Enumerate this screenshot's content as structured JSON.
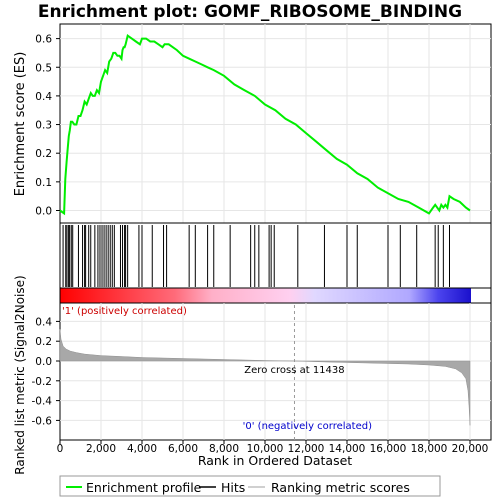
{
  "chart_data": {
    "type": "line",
    "title": "Enrichment plot: GOMF_RIBOSOME_BINDING",
    "panels": {
      "es": {
        "ylabel": "Enrichment score (ES)",
        "ylim": [
          -0.03,
          0.65
        ],
        "yticks": [
          "0.0",
          "0.1",
          "0.2",
          "0.3",
          "0.4",
          "0.5",
          "0.6"
        ],
        "grid": true
      },
      "metric": {
        "ylabel": "Ranked list metric (Signal2Noise)",
        "ylim": [
          -0.7,
          0.48
        ],
        "yticks": [
          "-0.6",
          "-0.4",
          "-0.2",
          "0.0",
          "0.2",
          "0.4"
        ],
        "grid": true
      }
    },
    "x": {
      "label": "Rank in Ordered Dataset",
      "xlim": [
        0,
        21000
      ],
      "ticks": [
        "0",
        "2,000",
        "4,000",
        "6,000",
        "8,000",
        "10,000",
        "12,000",
        "14,000",
        "16,000",
        "18,000",
        "20,000"
      ]
    },
    "series": [
      {
        "name": "Enrichment profile",
        "color": "#00ee00",
        "x": [
          0,
          200,
          260,
          320,
          380,
          430,
          480,
          530,
          600,
          700,
          800,
          900,
          1000,
          1100,
          1200,
          1300,
          1400,
          1500,
          1600,
          1700,
          1800,
          1900,
          2000,
          2100,
          2200,
          2300,
          2400,
          2500,
          2600,
          2700,
          2800,
          2900,
          3000,
          3050,
          3100,
          3150,
          3200,
          3300,
          3500,
          3700,
          3900,
          4000,
          4200,
          4400,
          4600,
          4800,
          5000,
          5100,
          5200,
          5300,
          5500,
          5700,
          6000,
          6300,
          6600,
          6900,
          7200,
          7500,
          8000,
          8500,
          9000,
          9500,
          10000,
          10500,
          11000,
          11500,
          12000,
          12500,
          13000,
          13500,
          14000,
          14500,
          15000,
          15500,
          16000,
          16500,
          17000,
          17500,
          18000,
          18200,
          18300,
          18400,
          18500,
          18600,
          18700,
          18800,
          18900,
          19000,
          19200,
          19500,
          19800,
          20000
        ],
        "values": [
          0.0,
          -0.01,
          0.11,
          0.17,
          0.22,
          0.26,
          0.28,
          0.31,
          0.31,
          0.3,
          0.3,
          0.33,
          0.33,
          0.35,
          0.38,
          0.37,
          0.39,
          0.41,
          0.4,
          0.4,
          0.42,
          0.41,
          0.45,
          0.47,
          0.49,
          0.48,
          0.52,
          0.53,
          0.55,
          0.55,
          0.54,
          0.54,
          0.53,
          0.56,
          0.57,
          0.57,
          0.58,
          0.61,
          0.6,
          0.59,
          0.58,
          0.6,
          0.6,
          0.59,
          0.59,
          0.58,
          0.57,
          0.58,
          0.58,
          0.58,
          0.57,
          0.56,
          0.54,
          0.53,
          0.52,
          0.51,
          0.5,
          0.49,
          0.47,
          0.44,
          0.42,
          0.4,
          0.37,
          0.35,
          0.32,
          0.3,
          0.27,
          0.24,
          0.21,
          0.18,
          0.16,
          0.13,
          0.11,
          0.08,
          0.06,
          0.04,
          0.03,
          0.01,
          -0.01,
          0.01,
          0.02,
          0.01,
          0.0,
          0.02,
          0.01,
          0.02,
          0.01,
          0.05,
          0.04,
          0.03,
          0.01,
          0.0
        ]
      },
      {
        "name": "Hits",
        "color": "#000000",
        "positions": [
          150,
          280,
          340,
          420,
          470,
          550,
          620,
          900,
          1100,
          1200,
          1250,
          1400,
          1500,
          1700,
          1850,
          1950,
          2050,
          2150,
          2250,
          2350,
          2450,
          2550,
          2650,
          2950,
          3050,
          3150,
          3200,
          3300,
          3850,
          4000,
          4500,
          5050,
          5200,
          6300,
          6600,
          7200,
          7500,
          8300,
          9300,
          9500,
          9700,
          10200,
          10300,
          10450,
          11600,
          12900,
          14000,
          14500,
          16000,
          16600,
          17400,
          18300,
          18450,
          18700,
          19000
        ]
      },
      {
        "name": "Ranking metric scores",
        "color": "#c0c0c0",
        "x": [
          0,
          50,
          150,
          300,
          500,
          800,
          1200,
          2000,
          3000,
          4000,
          6000,
          8000,
          10000,
          11438,
          13000,
          15000,
          17000,
          18000,
          18800,
          19300,
          19600,
          19800,
          19900,
          19950,
          20000
        ],
        "values": [
          0.32,
          0.22,
          0.15,
          0.12,
          0.1,
          0.085,
          0.07,
          0.055,
          0.045,
          0.035,
          0.025,
          0.015,
          0.005,
          0.0,
          -0.01,
          -0.02,
          -0.03,
          -0.04,
          -0.055,
          -0.08,
          -0.12,
          -0.18,
          -0.3,
          -0.45,
          -0.65
        ]
      }
    ],
    "annotations": {
      "zero_cross_text": "Zero cross at 11438",
      "zero_cross_x": 11438,
      "positive_label": "'1' (positively correlated)",
      "negative_label": "'0' (negatively correlated)",
      "positive_color": "#dd0000",
      "negative_color": "#0000cc"
    },
    "legend": {
      "placement": "bottom",
      "items": [
        "Enrichment profile",
        "Hits",
        "Ranking metric scores"
      ]
    }
  }
}
